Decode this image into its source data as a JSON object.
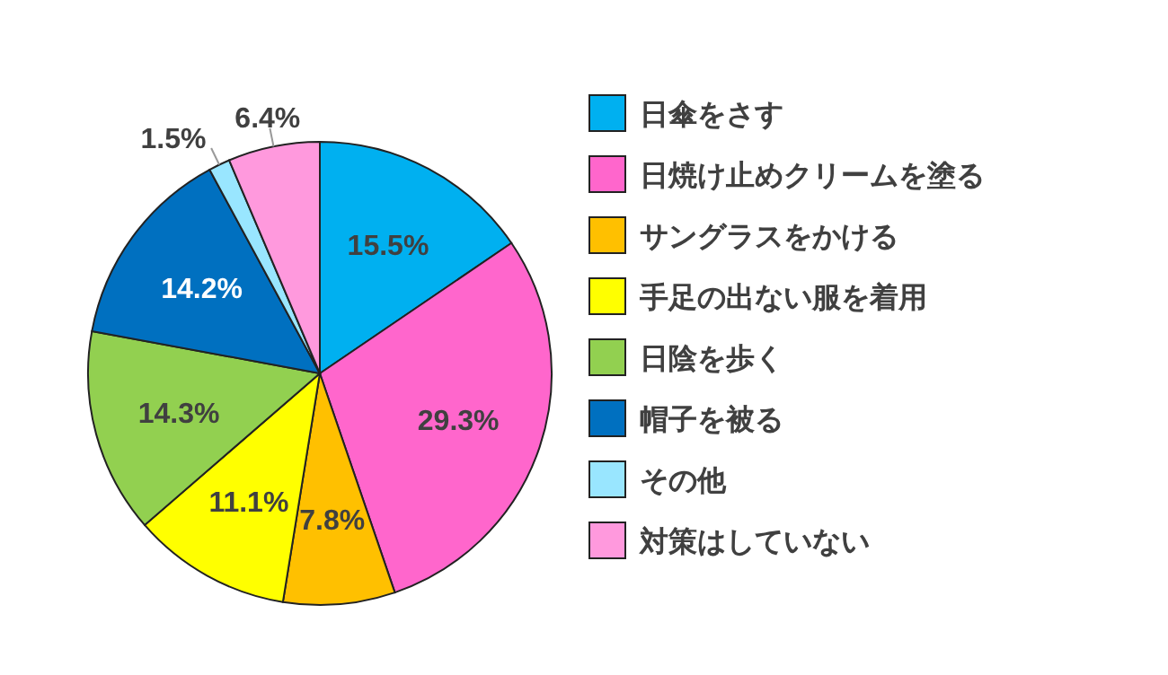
{
  "chart_data": {
    "type": "pie",
    "categories": [
      "日傘をさす",
      "日焼け止めクリームを塗る",
      "サングラスをかける",
      "手足の出ない服を着用",
      "日陰を歩く",
      "帽子を被る",
      "その他",
      "対策はしていない"
    ],
    "values": [
      15.5,
      29.3,
      7.8,
      11.1,
      14.3,
      14.2,
      1.5,
      6.4
    ],
    "value_labels": [
      "15.5%",
      "29.3%",
      "7.8%",
      "11.1%",
      "14.3%",
      "14.2%",
      "1.5%",
      "6.4%"
    ],
    "colors": [
      "#00b0f0",
      "#ff66cc",
      "#ffc000",
      "#ffff00",
      "#92d050",
      "#0070c0",
      "#99e6ff",
      "#ff99dd"
    ],
    "legend": "right"
  }
}
